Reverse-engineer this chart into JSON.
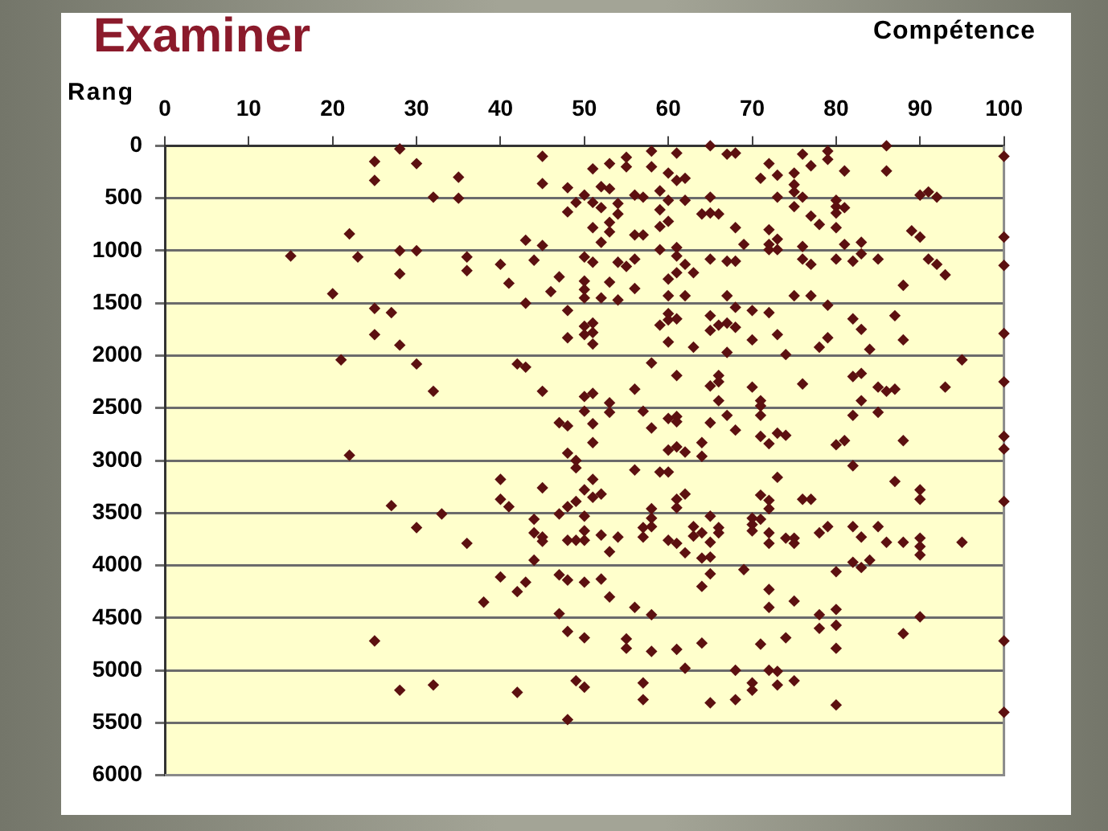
{
  "chart_data": {
    "type": "scatter",
    "title": "Examiner",
    "xlabel": "Compétence",
    "ylabel": "Rang",
    "xlim": [
      0,
      100
    ],
    "xticks": [
      0,
      10,
      20,
      30,
      40,
      50,
      60,
      70,
      80,
      90,
      100
    ],
    "ylim": [
      6000,
      0
    ],
    "yticks": [
      0,
      500,
      1000,
      1500,
      2000,
      2500,
      3000,
      3500,
      4000,
      4500,
      5000,
      5500,
      6000
    ],
    "grid": "y",
    "marker": "diamond",
    "color": "#5c1010",
    "x": [
      28,
      25,
      30,
      45,
      25,
      35,
      45,
      48,
      32,
      35,
      48,
      22,
      43,
      45,
      15,
      23,
      28,
      30,
      36,
      44,
      28,
      36,
      40,
      47,
      41,
      46,
      20,
      43,
      25,
      27,
      48,
      25,
      28,
      48,
      21,
      30,
      42,
      43,
      58,
      61,
      65,
      67,
      68,
      76,
      79,
      79,
      86,
      100,
      55,
      55,
      53,
      51,
      58,
      60,
      61,
      62,
      59,
      72,
      77,
      71,
      73,
      75,
      75,
      81,
      86,
      52,
      53,
      50,
      49,
      51,
      52,
      54,
      54,
      56,
      57,
      60,
      62,
      65,
      73,
      75,
      76,
      75,
      80,
      80,
      81,
      90,
      91,
      92,
      59,
      64,
      65,
      66,
      77,
      78,
      80,
      51,
      53,
      53,
      59,
      60,
      56,
      57,
      68,
      72,
      80,
      89,
      90,
      52,
      59,
      61,
      61,
      69,
      72,
      72,
      73,
      73,
      76,
      81,
      83,
      83,
      100,
      50,
      51,
      54,
      55,
      56,
      62,
      65,
      67,
      68,
      76,
      77,
      80,
      82,
      85,
      91,
      92,
      93,
      100,
      61,
      63,
      60,
      50,
      50,
      50,
      53,
      52,
      54,
      56,
      60,
      62,
      67,
      75,
      77,
      79,
      88,
      60,
      60,
      59,
      61,
      65,
      65,
      66,
      67,
      68,
      68,
      70,
      72,
      50,
      51,
      51,
      50,
      51,
      60,
      63,
      67,
      70,
      73,
      74,
      78,
      79,
      82,
      83,
      84,
      87,
      88,
      100,
      58,
      95,
      32,
      45,
      47,
      48,
      22,
      48,
      40,
      45,
      40,
      41,
      48,
      27,
      33,
      47,
      30,
      44,
      44,
      45,
      45,
      48,
      36,
      44,
      40,
      43,
      47,
      48,
      42,
      61,
      65,
      66,
      66,
      56,
      70,
      76,
      82,
      83,
      85,
      86,
      87,
      93,
      100,
      50,
      51,
      53,
      53,
      66,
      71,
      71,
      71,
      83,
      50,
      57,
      60,
      61,
      61,
      65,
      67,
      82,
      85,
      51,
      58,
      68,
      71,
      72,
      73,
      74,
      80,
      81,
      88,
      100,
      100,
      51,
      60,
      61,
      62,
      64,
      64,
      49,
      49,
      56,
      59,
      60,
      82,
      51,
      73,
      87,
      50,
      51,
      52,
      49,
      62,
      61,
      61,
      71,
      72,
      72,
      76,
      77,
      90,
      90,
      100,
      58,
      50,
      58,
      58,
      57,
      65,
      70,
      70,
      70,
      71,
      50,
      63,
      64,
      63,
      66,
      66,
      72,
      72,
      78,
      79,
      82,
      83,
      85,
      49,
      50,
      52,
      54,
      57,
      60,
      61,
      65,
      74,
      75,
      75,
      86,
      88,
      90,
      90,
      90,
      95,
      53,
      62,
      64,
      65,
      82,
      83,
      84,
      80,
      65,
      69,
      50,
      52,
      64,
      72,
      38,
      47,
      48,
      25,
      28,
      32,
      42,
      48,
      53,
      56,
      58,
      72,
      75,
      78,
      80,
      80,
      78,
      90,
      88,
      50,
      55,
      55,
      58,
      61,
      64,
      71,
      74,
      80,
      100,
      62,
      68,
      72,
      73,
      49,
      50,
      57,
      57,
      70,
      70,
      73,
      75,
      65,
      68,
      80,
      100
    ],
    "values": [
      30,
      150,
      170,
      100,
      330,
      300,
      360,
      400,
      490,
      500,
      630,
      840,
      900,
      950,
      1050,
      1060,
      1000,
      1000,
      1060,
      1090,
      1220,
      1190,
      1130,
      1250,
      1310,
      1390,
      1410,
      1500,
      1550,
      1590,
      1570,
      1800,
      1900,
      1830,
      2040,
      2080,
      2080,
      2110,
      50,
      70,
      0,
      80,
      70,
      80,
      50,
      130,
      0,
      100,
      110,
      200,
      170,
      220,
      200,
      260,
      330,
      310,
      430,
      170,
      190,
      310,
      280,
      260,
      370,
      240,
      240,
      390,
      410,
      470,
      540,
      540,
      590,
      550,
      650,
      470,
      490,
      520,
      520,
      490,
      490,
      440,
      490,
      580,
      520,
      580,
      590,
      470,
      440,
      490,
      610,
      650,
      640,
      650,
      670,
      750,
      640,
      780,
      730,
      820,
      770,
      720,
      850,
      850,
      780,
      800,
      780,
      810,
      870,
      920,
      990,
      970,
      1050,
      940,
      940,
      990,
      890,
      990,
      960,
      940,
      920,
      1030,
      870,
      1060,
      1110,
      1110,
      1150,
      1080,
      1130,
      1080,
      1100,
      1100,
      1080,
      1130,
      1080,
      1100,
      1080,
      1080,
      1130,
      1230,
      1140,
      1210,
      1210,
      1270,
      1290,
      1370,
      1450,
      1300,
      1450,
      1470,
      1360,
      1430,
      1430,
      1430,
      1430,
      1430,
      1520,
      1330,
      1600,
      1660,
      1710,
      1650,
      1620,
      1760,
      1710,
      1690,
      1730,
      1540,
      1570,
      1590,
      1720,
      1690,
      1780,
      1800,
      1890,
      1870,
      1920,
      1970,
      1850,
      1800,
      1990,
      1920,
      1830,
      1650,
      1750,
      1940,
      1620,
      1850,
      1790,
      2070,
      2040,
      2340,
      2340,
      2640,
      2670,
      2950,
      2930,
      3180,
      3260,
      3370,
      3440,
      3440,
      3430,
      3510,
      3510,
      3640,
      3560,
      3690,
      3730,
      3770,
      3760,
      3790,
      3950,
      4110,
      4160,
      4090,
      4140,
      4250,
      2190,
      2290,
      2190,
      2250,
      2320,
      2300,
      2270,
      2200,
      2170,
      2300,
      2340,
      2320,
      2300,
      2250,
      2390,
      2360,
      2450,
      2540,
      2430,
      2430,
      2480,
      2570,
      2430,
      2530,
      2530,
      2600,
      2580,
      2630,
      2640,
      2570,
      2570,
      2540,
      2650,
      2690,
      2710,
      2770,
      2840,
      2740,
      2760,
      2850,
      2810,
      2810,
      2770,
      2890,
      2830,
      2900,
      2870,
      2920,
      2830,
      2960,
      3000,
      3070,
      3090,
      3110,
      3110,
      3050,
      3180,
      3160,
      3200,
      3280,
      3350,
      3320,
      3390,
      3320,
      3370,
      3450,
      3330,
      3380,
      3460,
      3370,
      3370,
      3280,
      3370,
      3390,
      3460,
      3530,
      3550,
      3630,
      3640,
      3530,
      3550,
      3610,
      3670,
      3560,
      3670,
      3630,
      3690,
      3720,
      3640,
      3690,
      3690,
      3790,
      3690,
      3630,
      3630,
      3730,
      3630,
      3760,
      3760,
      3710,
      3730,
      3730,
      3760,
      3790,
      3780,
      3740,
      3740,
      3790,
      3780,
      3780,
      3740,
      3820,
      3900,
      3780,
      3870,
      3880,
      3930,
      3920,
      3970,
      4020,
      3950,
      4060,
      4080,
      4040,
      4160,
      4130,
      4200,
      4230,
      4350,
      4460,
      4630,
      4720,
      5190,
      5140,
      5210,
      5470,
      4300,
      4400,
      4470,
      4400,
      4340,
      4470,
      4420,
      4570,
      4600,
      4490,
      4650,
      4690,
      4700,
      4790,
      4820,
      4800,
      4740,
      4750,
      4690,
      4790,
      4720,
      4980,
      5000,
      5000,
      5010,
      5100,
      5160,
      5120,
      5280,
      5120,
      5190,
      5140,
      5100,
      5310,
      5280,
      5330,
      5400
    ]
  }
}
